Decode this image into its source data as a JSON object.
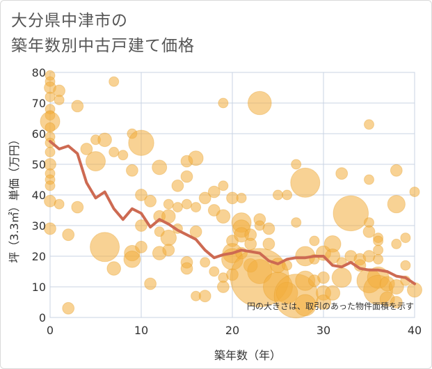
{
  "title": {
    "line1": "大分県中津市の",
    "line2": "築年数別中古戸建て価格"
  },
  "note": "円の大きさは、取引のあった物件面積を示す",
  "colors": {
    "bubble": "#f2ad3c",
    "bubble_edge": "#e39a22",
    "line": "#cd6a52",
    "grid": "#c9d3e3",
    "axis_text": "#333333"
  },
  "chart_data": {
    "type": "scatter",
    "xlabel": "築年数（年）",
    "ylabel": "坪（3.3㎡）単価（万円）",
    "xlim": [
      0,
      40
    ],
    "ylim": [
      0,
      80
    ],
    "x_ticks": [
      "0",
      "10",
      "20",
      "30",
      "40"
    ],
    "y_ticks": [
      "0",
      "10",
      "20",
      "30",
      "40",
      "50",
      "60",
      "70",
      "80"
    ],
    "trend_line": {
      "x": [
        0,
        1,
        2,
        3,
        4,
        5,
        6,
        7,
        8,
        9,
        10,
        11,
        12,
        13,
        14,
        15,
        16,
        17,
        18,
        19,
        20,
        21,
        22,
        23,
        24,
        25,
        26,
        27,
        28,
        29,
        30,
        31,
        32,
        33,
        34,
        35,
        36,
        37,
        38,
        39,
        40
      ],
      "y": [
        57.5,
        55,
        56,
        53.5,
        44,
        39,
        41,
        35.5,
        32,
        35.5,
        34,
        29.5,
        32,
        30.5,
        28.5,
        27,
        25.5,
        22,
        19.5,
        20.5,
        21,
        22,
        21.5,
        21,
        18.5,
        17.5,
        19,
        19.5,
        19.5,
        20,
        20,
        17,
        16.5,
        18,
        16,
        15.5,
        15.5,
        15,
        13.5,
        13,
        11
      ]
    },
    "bubbles": [
      [
        0,
        79,
        1
      ],
      [
        0,
        77,
        1
      ],
      [
        0,
        75,
        1.2
      ],
      [
        0,
        72,
        1
      ],
      [
        0,
        68,
        1
      ],
      [
        0,
        66,
        1
      ],
      [
        0,
        64,
        2
      ],
      [
        0,
        62,
        1
      ],
      [
        0,
        59,
        1
      ],
      [
        0,
        57,
        1
      ],
      [
        0,
        54,
        1
      ],
      [
        0,
        50,
        1.2
      ],
      [
        0,
        47,
        1
      ],
      [
        0,
        45,
        1
      ],
      [
        0,
        43,
        1
      ],
      [
        0,
        38,
        1.2
      ],
      [
        0,
        29,
        1.2
      ],
      [
        1,
        74,
        1.2
      ],
      [
        1,
        71,
        1
      ],
      [
        1,
        37,
        1
      ],
      [
        2,
        27,
        1.2
      ],
      [
        2,
        3,
        1.2
      ],
      [
        3,
        69,
        1.2
      ],
      [
        3,
        36,
        1.2
      ],
      [
        4,
        55,
        1.2
      ],
      [
        5,
        58,
        1
      ],
      [
        5,
        51,
        2
      ],
      [
        6,
        58,
        1.4
      ],
      [
        6,
        23,
        3
      ],
      [
        7,
        77,
        1
      ],
      [
        7,
        54,
        1
      ],
      [
        7,
        16,
        1.4
      ],
      [
        8,
        53,
        1
      ],
      [
        9,
        60,
        1
      ],
      [
        9,
        48,
        1.2
      ],
      [
        9,
        21,
        1.6
      ],
      [
        9,
        19,
        1.7
      ],
      [
        10,
        57,
        2.6
      ],
      [
        10,
        40,
        1.2
      ],
      [
        10,
        30,
        1.2
      ],
      [
        10,
        23,
        1.2
      ],
      [
        11,
        38,
        1.2
      ],
      [
        11,
        11,
        1.2
      ],
      [
        12,
        49,
        1.5
      ],
      [
        12,
        33,
        1.2
      ],
      [
        12,
        28,
        1
      ],
      [
        12,
        21,
        1.4
      ],
      [
        13,
        37,
        1
      ],
      [
        13,
        33,
        1.4
      ],
      [
        13,
        26,
        1.6
      ],
      [
        13,
        22,
        1.2
      ],
      [
        14,
        43,
        1.2
      ],
      [
        14,
        36,
        1
      ],
      [
        14,
        29,
        1
      ],
      [
        15,
        51,
        1.2
      ],
      [
        15,
        46,
        1.2
      ],
      [
        15,
        37,
        1
      ],
      [
        15,
        18,
        1.2
      ],
      [
        15,
        16,
        1.2
      ],
      [
        16,
        52,
        1.5
      ],
      [
        16,
        36,
        1
      ],
      [
        16,
        28,
        1.2
      ],
      [
        16,
        7,
        1
      ],
      [
        17,
        7,
        1.2
      ],
      [
        17,
        39,
        1.2
      ],
      [
        17,
        18,
        1
      ],
      [
        18,
        41,
        1.2
      ],
      [
        18,
        35,
        1.2
      ],
      [
        18,
        15,
        1
      ],
      [
        19,
        70,
        1
      ],
      [
        19,
        43,
        1
      ],
      [
        19,
        33,
        1.4
      ],
      [
        19,
        13,
        1
      ],
      [
        19,
        10,
        1.2
      ],
      [
        20,
        39,
        1.2
      ],
      [
        20,
        25,
        1.2
      ],
      [
        20,
        21,
        2
      ],
      [
        20,
        19,
        2.2
      ],
      [
        20,
        14,
        1.2
      ],
      [
        21,
        39,
        1
      ],
      [
        21,
        31,
        2
      ],
      [
        21,
        29,
        1.8
      ],
      [
        21,
        27,
        1.5
      ],
      [
        21,
        21,
        1.2
      ],
      [
        22,
        27,
        1.2
      ],
      [
        22,
        24,
        1.2
      ],
      [
        22,
        17,
        1.4
      ],
      [
        23,
        70,
        2.4
      ],
      [
        23,
        32,
        1.2
      ],
      [
        23,
        30,
        1
      ],
      [
        23,
        15,
        2.5
      ],
      [
        23,
        13,
        6
      ],
      [
        24,
        29,
        1.2
      ],
      [
        24,
        24,
        1.2
      ],
      [
        25,
        40,
        1
      ],
      [
        25,
        17,
        1.5
      ],
      [
        25,
        10,
        3
      ],
      [
        26,
        40,
        1
      ],
      [
        26,
        17,
        1
      ],
      [
        26,
        8,
        2.2
      ],
      [
        27,
        50,
        1
      ],
      [
        27,
        31,
        1
      ],
      [
        27,
        7,
        4.5
      ],
      [
        28,
        44,
        3
      ],
      [
        28,
        20,
        2
      ],
      [
        28,
        12,
        2
      ],
      [
        28,
        4,
        2.2
      ],
      [
        29,
        25,
        1
      ],
      [
        29,
        19,
        1
      ],
      [
        29,
        12,
        1.2
      ],
      [
        30,
        21,
        1.5
      ],
      [
        30,
        13,
        1.2
      ],
      [
        30,
        8,
        1.5
      ],
      [
        30,
        5,
        1.5
      ],
      [
        31,
        24,
        1.7
      ],
      [
        31,
        20,
        1.5
      ],
      [
        31,
        8,
        1.5
      ],
      [
        32,
        47,
        1.2
      ],
      [
        32,
        18,
        1
      ],
      [
        32,
        13,
        2
      ],
      [
        33,
        34,
        3.6
      ],
      [
        33,
        20,
        1.2
      ],
      [
        34,
        19,
        1.2
      ],
      [
        34,
        17,
        1.2
      ],
      [
        35,
        63,
        1
      ],
      [
        35,
        45,
        1
      ],
      [
        35,
        31,
        1
      ],
      [
        35,
        28,
        1.2
      ],
      [
        35,
        20,
        1.2
      ],
      [
        35,
        12,
        2.5
      ],
      [
        36,
        26,
        1
      ],
      [
        36,
        25,
        1
      ],
      [
        36,
        22,
        1
      ],
      [
        36,
        19,
        1
      ],
      [
        36,
        13,
        2.2
      ],
      [
        36,
        9,
        3
      ],
      [
        37,
        11,
        1.5
      ],
      [
        37,
        6,
        1.5
      ],
      [
        38,
        48,
        1.2
      ],
      [
        38,
        37,
        1.8
      ],
      [
        38,
        24,
        1
      ],
      [
        38,
        10,
        1.5
      ],
      [
        38,
        5,
        1.2
      ],
      [
        39,
        26,
        1
      ],
      [
        39,
        17,
        1
      ],
      [
        39,
        12,
        1
      ],
      [
        40,
        41,
        1
      ],
      [
        40,
        9,
        1.5
      ]
    ]
  }
}
